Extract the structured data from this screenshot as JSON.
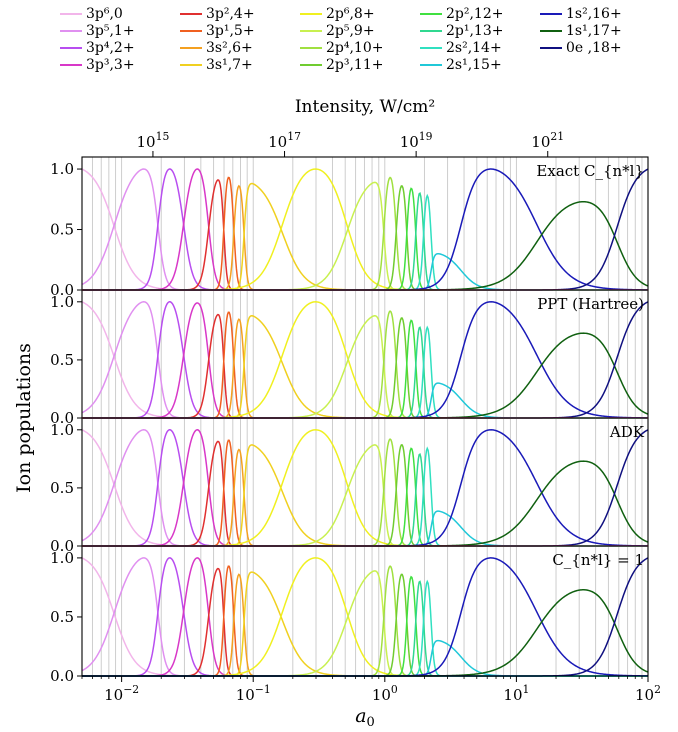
{
  "chart_data": {
    "type": "line",
    "x_axis": {
      "label": "a0",
      "scale": "log",
      "xlim": [
        0.005,
        100
      ],
      "tick_labels": [
        "10^-2",
        "10^-1",
        "10^0",
        "10^1",
        "10^2"
      ]
    },
    "top_axis": {
      "label": "Intensity, W/cm²",
      "tick_labels": [
        "10^15",
        "10^17",
        "10^19",
        "10^21"
      ]
    },
    "ylabel": "Ion populations",
    "ylim": [
      0,
      1.05
    ],
    "ytick_labels": [
      "0.0",
      "0.5",
      "1.0"
    ],
    "grid": "vertical lines at log minor ticks",
    "panels": [
      "Exact C_{n*l}",
      "PPT (Hartree)",
      "ADK",
      "C_{n*l} = 1"
    ],
    "legend": {
      "placement": "top",
      "ncols": 5
    },
    "series": [
      {
        "name": "3p⁶,0",
        "color": "#f2b5ea"
      },
      {
        "name": "3p⁵,1+",
        "color": "#e090f0"
      },
      {
        "name": "3p⁴,2+",
        "color": "#b84ef0"
      },
      {
        "name": "3p³,3+",
        "color": "#d838c8"
      },
      {
        "name": "3p²,4+",
        "color": "#e03030"
      },
      {
        "name": "3p¹,5+",
        "color": "#f06020"
      },
      {
        "name": "3s²,6+",
        "color": "#f4a020"
      },
      {
        "name": "3s¹,7+",
        "color": "#f0d020"
      },
      {
        "name": "2p⁶,8+",
        "color": "#f0f020"
      },
      {
        "name": "2p⁵,9+",
        "color": "#c8f050"
      },
      {
        "name": "2p⁴,10+",
        "color": "#a0e040"
      },
      {
        "name": "2p³,11+",
        "color": "#70cc30"
      },
      {
        "name": "2p²,12+",
        "color": "#40e040"
      },
      {
        "name": "2p¹,13+",
        "color": "#30d890"
      },
      {
        "name": "2s²,14+",
        "color": "#30e0c0"
      },
      {
        "name": "2s¹,15+",
        "color": "#20c8d8"
      },
      {
        "name": "1s²,16+",
        "color": "#1a1ab8"
      },
      {
        "name": "1s¹,17+",
        "color": "#106010"
      },
      {
        "name": "0e ,18+",
        "color": "#101080"
      }
    ],
    "peak_positions_a0": [
      0.005,
      0.0155,
      0.023,
      0.038,
      0.055,
      0.065,
      0.078,
      0.093,
      0.3,
      0.88,
      1.1,
      1.35,
      1.6,
      1.85,
      2.1,
      2.4,
      6,
      34,
      100
    ],
    "peak_heights": [
      [
        1.0,
        1.0,
        1.0,
        1.0,
        0.91,
        0.93,
        0.86,
        0.88,
        1.0,
        0.89,
        0.93,
        0.86,
        0.84,
        0.8,
        0.78,
        0.3,
        1.0,
        0.73,
        1.0
      ],
      [
        1.0,
        1.0,
        1.0,
        0.99,
        0.89,
        0.91,
        0.85,
        0.88,
        1.0,
        0.88,
        0.92,
        0.86,
        0.84,
        0.78,
        0.78,
        0.3,
        1.0,
        0.73,
        1.0
      ],
      [
        1.0,
        1.0,
        1.0,
        1.0,
        0.9,
        0.91,
        0.83,
        0.87,
        1.0,
        0.87,
        0.92,
        0.87,
        0.84,
        0.79,
        0.84,
        0.3,
        1.0,
        0.73,
        1.0
      ],
      [
        1.0,
        1.0,
        1.0,
        1.0,
        0.91,
        0.93,
        0.86,
        0.88,
        1.0,
        0.89,
        0.93,
        0.86,
        0.84,
        0.8,
        0.8,
        0.3,
        1.0,
        0.73,
        1.0
      ]
    ]
  }
}
